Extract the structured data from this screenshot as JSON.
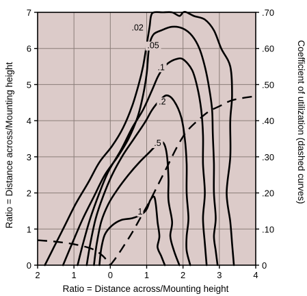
{
  "chart_data": {
    "type": "line",
    "title": "",
    "xlabel": "Ratio = Distance across/Mounting height",
    "ylabel_left": "Ratio = Distance across/Mounting height",
    "ylabel_right": "Coefficient of utilization (dashed curves)",
    "x_tick_labels": [
      "2",
      "1",
      "0",
      "1",
      "2",
      "3",
      "4"
    ],
    "x_tick_values": [
      -2,
      -1,
      0,
      1,
      2,
      3,
      4
    ],
    "xlim": [
      -2,
      4
    ],
    "ylim": [
      0,
      7
    ],
    "y_tick_values": [
      0,
      1,
      2,
      3,
      4,
      5,
      6,
      7
    ],
    "y_tick_labels": [
      "0",
      "1",
      "2",
      "3",
      "4",
      "5",
      "6",
      "7"
    ],
    "right_ylim": [
      0,
      0.7
    ],
    "right_tick_labels": [
      "0",
      ".10",
      ".20",
      ".30",
      ".40",
      ".50",
      ".60",
      ".70"
    ],
    "grid": true,
    "background_color": "#dccbc9",
    "isolux_curves": [
      {
        "label": ".02",
        "label_at": [
          0.75,
          6.5
        ],
        "x": [
          -1.8,
          -1.55,
          -1.25,
          -0.95,
          -0.6,
          -0.3,
          0.05,
          0.35,
          0.6,
          0.78,
          0.9,
          1.0,
          1.08,
          1.12,
          1.2,
          1.45,
          1.7,
          1.9,
          2.0,
          2.1,
          2.3,
          2.6,
          2.85,
          3.05,
          3.3,
          3.35,
          3.3,
          3.3,
          3.2,
          3.3,
          3.35,
          3.4
        ],
        "y": [
          0.0,
          0.5,
          1.1,
          1.7,
          2.3,
          2.85,
          3.3,
          3.8,
          4.4,
          5.0,
          5.5,
          6.1,
          6.6,
          6.9,
          7.0,
          7.0,
          7.0,
          6.9,
          7.0,
          7.0,
          6.9,
          6.8,
          6.5,
          6.0,
          5.5,
          4.7,
          4.0,
          3.0,
          2.0,
          1.2,
          0.6,
          0.0
        ]
      },
      {
        "label": ".05",
        "label_at": [
          1.18,
          6.0
        ],
        "x": [
          -1.3,
          -1.05,
          -0.75,
          -0.45,
          -0.15,
          0.2,
          0.5,
          0.75,
          0.9,
          1.0,
          1.05,
          1.1,
          1.2,
          1.4,
          1.7,
          2.0,
          2.25,
          2.45,
          2.6,
          2.72,
          2.8,
          2.82,
          2.85,
          2.85,
          2.9,
          2.85,
          2.9,
          2.95
        ],
        "y": [
          0.0,
          0.6,
          1.3,
          1.9,
          2.5,
          3.0,
          3.5,
          4.1,
          4.7,
          5.3,
          5.9,
          6.2,
          6.4,
          6.5,
          6.6,
          6.55,
          6.35,
          6.0,
          5.5,
          4.9,
          4.3,
          3.6,
          2.8,
          2.0,
          1.3,
          0.8,
          0.4,
          0.0
        ]
      },
      {
        "label": ".1",
        "label_at": [
          1.4,
          5.4
        ],
        "x": [
          -0.9,
          -0.75,
          -0.55,
          -0.3,
          -0.05,
          0.3,
          0.6,
          0.9,
          1.15,
          1.3,
          1.45,
          1.6,
          1.8,
          2.0,
          2.25,
          2.4,
          2.5,
          2.55,
          2.55,
          2.6,
          2.55,
          2.6,
          2.65
        ],
        "y": [
          0.0,
          0.6,
          1.3,
          2.0,
          2.6,
          3.2,
          3.8,
          4.3,
          4.85,
          5.2,
          5.45,
          5.6,
          5.7,
          5.7,
          5.4,
          4.9,
          4.3,
          3.6,
          2.8,
          2.0,
          1.3,
          0.6,
          0.0
        ]
      },
      {
        "label": ".2",
        "label_at": [
          1.43,
          4.45
        ],
        "x": [
          -0.65,
          -0.55,
          -0.4,
          -0.2,
          0.05,
          0.35,
          0.65,
          0.95,
          1.15,
          1.35,
          1.55,
          1.75,
          1.95,
          2.05,
          2.1,
          2.1,
          2.15,
          2.1,
          2.1,
          2.2
        ],
        "y": [
          0.0,
          0.6,
          1.3,
          1.9,
          2.5,
          3.05,
          3.5,
          3.95,
          4.3,
          4.55,
          4.7,
          4.55,
          4.1,
          3.5,
          2.8,
          2.0,
          1.3,
          0.8,
          0.4,
          0.0
        ]
      },
      {
        "label": ".5",
        "label_at": [
          1.3,
          3.3
        ],
        "x": [
          -0.45,
          -0.38,
          -0.25,
          -0.05,
          0.2,
          0.5,
          0.8,
          1.05,
          1.3,
          1.45,
          1.55,
          1.6,
          1.6,
          1.7,
          1.65,
          1.75,
          1.9
        ],
        "y": [
          0.0,
          0.55,
          1.2,
          1.7,
          2.1,
          2.5,
          2.85,
          3.1,
          3.35,
          3.4,
          3.1,
          2.4,
          1.8,
          1.2,
          0.8,
          0.4,
          0.0
        ]
      },
      {
        "label": "1",
        "label_at": [
          0.82,
          1.4
        ],
        "x": [
          -0.3,
          -0.25,
          -0.15,
          0.05,
          0.3,
          0.6,
          0.85,
          1.0,
          1.1,
          1.2,
          1.25,
          1.3,
          1.35,
          1.3,
          1.4,
          1.5
        ],
        "y": [
          0.0,
          0.45,
          0.85,
          1.1,
          1.25,
          1.3,
          1.4,
          1.55,
          1.8,
          1.9,
          1.7,
          1.2,
          0.8,
          0.5,
          0.25,
          0.0
        ]
      }
    ],
    "cu_curves": [
      {
        "x": [
          -2.0,
          -1.5,
          -1.0,
          -0.5,
          -0.2,
          0.0
        ],
        "y": [
          0.069,
          0.065,
          0.058,
          0.045,
          0.025,
          0.0
        ]
      },
      {
        "x": [
          0.0,
          0.15,
          0.35,
          0.6,
          0.85,
          1.1,
          1.35,
          1.6,
          1.85,
          2.1,
          2.4,
          2.7,
          3.0,
          3.3,
          3.6,
          4.0
        ],
        "y": [
          0.0,
          0.02,
          0.05,
          0.09,
          0.135,
          0.18,
          0.23,
          0.28,
          0.33,
          0.37,
          0.4,
          0.425,
          0.44,
          0.455,
          0.462,
          0.468
        ]
      }
    ]
  }
}
